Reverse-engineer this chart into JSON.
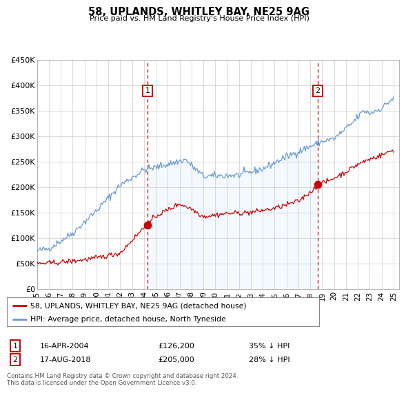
{
  "title": "58, UPLANDS, WHITLEY BAY, NE25 9AG",
  "subtitle": "Price paid vs. HM Land Registry's House Price Index (HPI)",
  "legend_line1": "58, UPLANDS, WHITLEY BAY, NE25 9AG (detached house)",
  "legend_line2": "HPI: Average price, detached house, North Tyneside",
  "annotation1_date": "16-APR-2004",
  "annotation1_price": "£126,200",
  "annotation1_hpi": "35% ↓ HPI",
  "annotation1_year": 2004.29,
  "annotation1_value_red": 126200,
  "annotation2_date": "17-AUG-2018",
  "annotation2_price": "£205,000",
  "annotation2_hpi": "28% ↓ HPI",
  "annotation2_year": 2018.63,
  "annotation2_value_red": 205000,
  "ylim": [
    0,
    450000
  ],
  "yticks": [
    0,
    50000,
    100000,
    150000,
    200000,
    250000,
    300000,
    350000,
    400000,
    450000
  ],
  "ytick_labels": [
    "£0",
    "£50K",
    "£100K",
    "£150K",
    "£200K",
    "£250K",
    "£300K",
    "£350K",
    "£400K",
    "£450K"
  ],
  "xlim_start": 1995.0,
  "xlim_end": 2025.5,
  "xticks": [
    1995,
    1996,
    1997,
    1998,
    1999,
    2000,
    2001,
    2002,
    2003,
    2004,
    2005,
    2006,
    2007,
    2008,
    2009,
    2010,
    2011,
    2012,
    2013,
    2014,
    2015,
    2016,
    2017,
    2018,
    2019,
    2020,
    2021,
    2022,
    2023,
    2024,
    2025
  ],
  "red_color": "#cc0000",
  "blue_color": "#6699cc",
  "shade_color": "#ddeeff",
  "footer_text": "Contains HM Land Registry data © Crown copyright and database right 2024.\nThis data is licensed under the Open Government Licence v3.0.",
  "background_color": "#ffffff",
  "grid_color": "#cccccc"
}
